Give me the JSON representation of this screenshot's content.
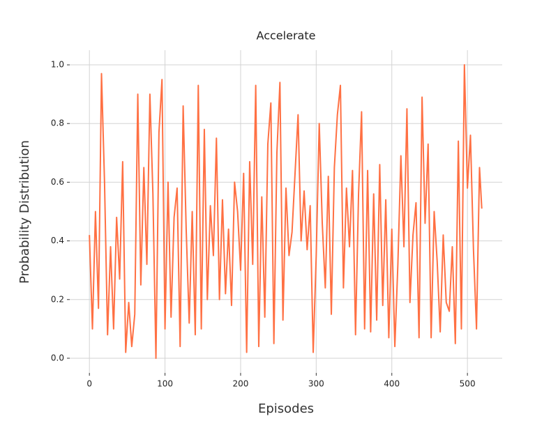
{
  "chart_data": {
    "type": "line",
    "title": "Accelerate",
    "x_label": "Episodes",
    "y_label": "Probability Distribution",
    "x": [
      0,
      4,
      8,
      12,
      16,
      20,
      24,
      28,
      32,
      36,
      40,
      44,
      48,
      52,
      56,
      60,
      64,
      68,
      72,
      76,
      80,
      84,
      88,
      92,
      96,
      100,
      104,
      108,
      112,
      116,
      120,
      124,
      128,
      132,
      136,
      140,
      144,
      148,
      152,
      156,
      160,
      164,
      168,
      172,
      176,
      180,
      184,
      188,
      192,
      196,
      200,
      204,
      208,
      212,
      216,
      220,
      224,
      228,
      232,
      236,
      240,
      244,
      248,
      252,
      256,
      260,
      264,
      268,
      272,
      276,
      280,
      284,
      288,
      292,
      296,
      300,
      304,
      308,
      312,
      316,
      320,
      324,
      328,
      332,
      336,
      340,
      344,
      348,
      352,
      356,
      360,
      364,
      368,
      372,
      376,
      380,
      384,
      388,
      392,
      396,
      400,
      404,
      408,
      412,
      416,
      420,
      424,
      428,
      432,
      436,
      440,
      444,
      448,
      452,
      456,
      460,
      464,
      468,
      472,
      476,
      480,
      484,
      488,
      492,
      496,
      500,
      504,
      508,
      512,
      516,
      519
    ],
    "values": [
      0.42,
      0.1,
      0.5,
      0.17,
      0.97,
      0.6,
      0.08,
      0.38,
      0.1,
      0.48,
      0.27,
      0.67,
      0.02,
      0.19,
      0.04,
      0.15,
      0.9,
      0.25,
      0.65,
      0.32,
      0.9,
      0.56,
      0.0,
      0.77,
      0.95,
      0.1,
      0.6,
      0.14,
      0.48,
      0.58,
      0.04,
      0.86,
      0.44,
      0.12,
      0.5,
      0.08,
      0.93,
      0.1,
      0.78,
      0.2,
      0.52,
      0.35,
      0.75,
      0.2,
      0.54,
      0.22,
      0.44,
      0.18,
      0.6,
      0.5,
      0.3,
      0.63,
      0.02,
      0.67,
      0.32,
      0.93,
      0.04,
      0.55,
      0.14,
      0.73,
      0.87,
      0.05,
      0.7,
      0.94,
      0.13,
      0.58,
      0.35,
      0.43,
      0.63,
      0.83,
      0.4,
      0.57,
      0.37,
      0.52,
      0.02,
      0.35,
      0.8,
      0.46,
      0.24,
      0.62,
      0.15,
      0.65,
      0.83,
      0.93,
      0.24,
      0.58,
      0.38,
      0.64,
      0.08,
      0.56,
      0.84,
      0.1,
      0.64,
      0.09,
      0.56,
      0.13,
      0.66,
      0.18,
      0.54,
      0.07,
      0.44,
      0.04,
      0.32,
      0.69,
      0.38,
      0.85,
      0.19,
      0.42,
      0.53,
      0.07,
      0.89,
      0.46,
      0.73,
      0.07,
      0.5,
      0.33,
      0.09,
      0.42,
      0.19,
      0.16,
      0.38,
      0.05,
      0.74,
      0.1,
      1.0,
      0.58,
      0.76,
      0.37,
      0.1,
      0.65,
      0.51
    ],
    "color": "#ff7043",
    "xlim": [
      -26,
      546
    ],
    "ylim": [
      -0.05,
      1.05
    ],
    "xticks": [
      0,
      100,
      200,
      300,
      400,
      500
    ],
    "yticks": [
      {
        "value": 0,
        "label": "0.0"
      },
      0.2,
      0.4,
      0.6,
      0.8,
      {
        "value": 1,
        "label": "1.0"
      }
    ],
    "grid": true
  }
}
